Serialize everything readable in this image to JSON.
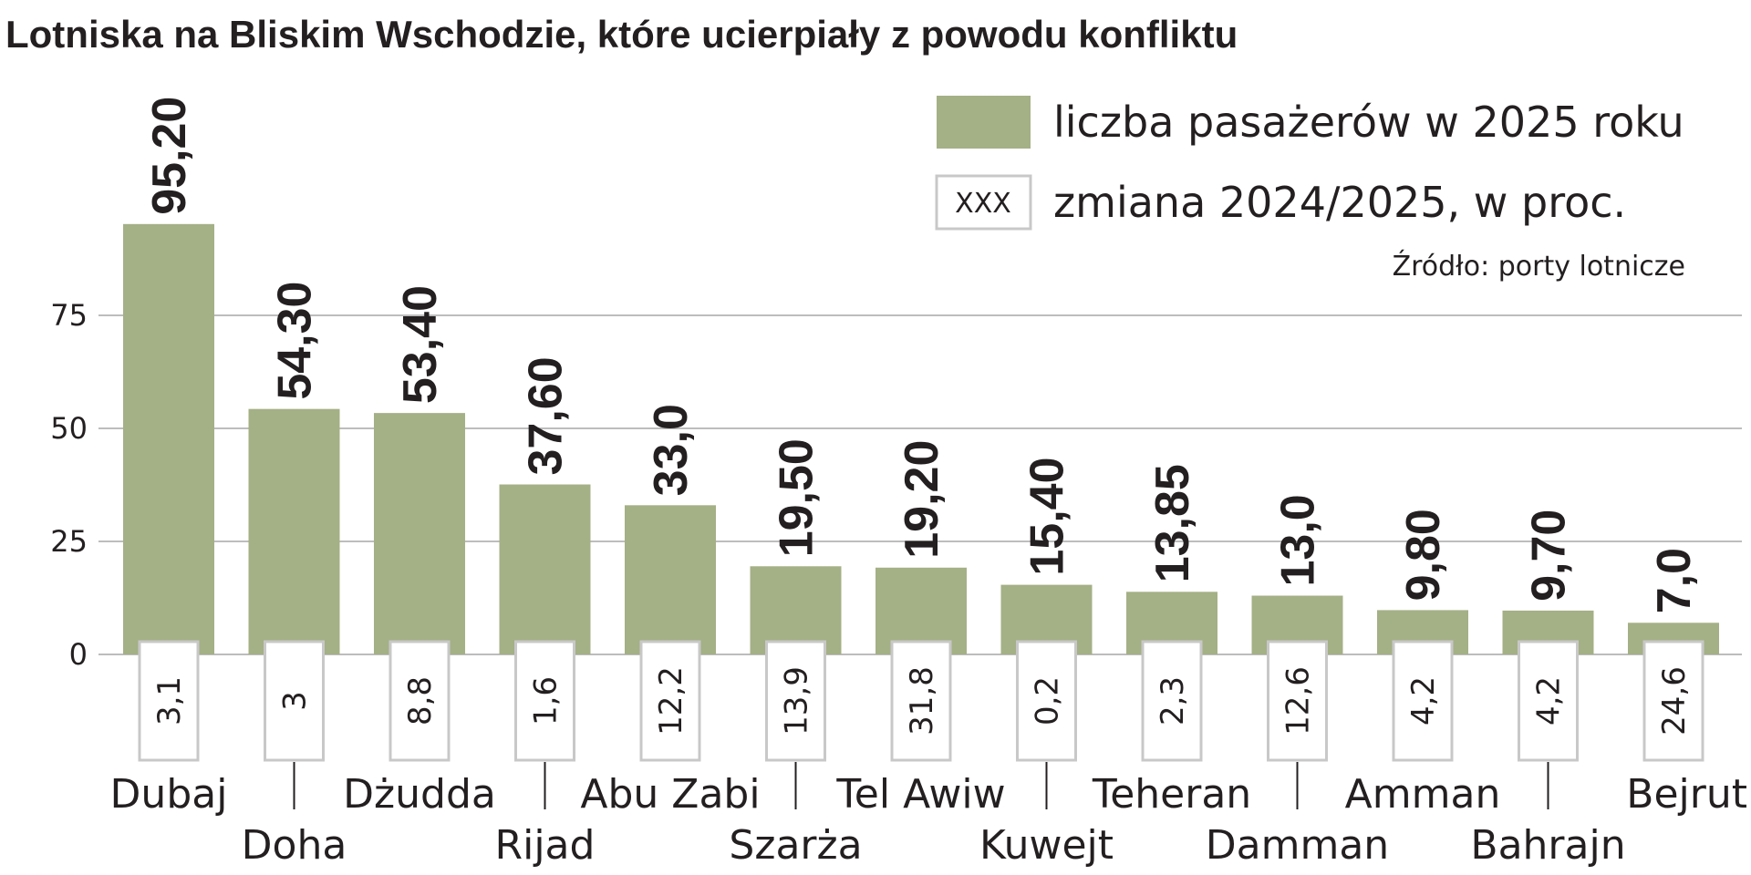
{
  "chart_data": {
    "type": "bar",
    "title": "Lotniska na Bliskim Wschodzie, które ucierpiały z powodu konfliktu",
    "source": "Źródło: porty lotnicze",
    "legend": {
      "placement": "top-right",
      "bar_label": "liczba pasażerów w 2025 roku",
      "change_label": "zmiana 2024/2025, w proc.",
      "change_sample": "XXX"
    },
    "categories": [
      "Dubaj",
      "Doha",
      "Dżudda",
      "Rijad",
      "Abu Zabi",
      "Szarża",
      "Tel Awiw",
      "Kuwejt",
      "Teheran",
      "Damman",
      "Amman",
      "Bahrajn",
      "Bejrut"
    ],
    "values": [
      95.2,
      54.3,
      53.4,
      37.6,
      33.0,
      19.5,
      19.2,
      15.4,
      13.85,
      13.0,
      9.8,
      9.7,
      7.0
    ],
    "value_labels": [
      "95,20",
      "54,30",
      "53,40",
      "37,60",
      "33,0",
      "19,50",
      "19,20",
      "15,40",
      "13,85",
      "13,0",
      "9,80",
      "9,70",
      "7,0"
    ],
    "changes": [
      "3,1",
      "3",
      "8,8",
      "1,6",
      "12,2",
      "13,9",
      "31,8",
      "0,2",
      "2,3",
      "12,6",
      "4,2",
      "4,2",
      "24,6"
    ],
    "y_ticks": [
      0,
      25,
      50,
      75
    ],
    "ylim": [
      0,
      100
    ],
    "grid": true,
    "colors": {
      "bar": "#a4b086",
      "grid": "#bdbdbd",
      "box_border": "#c8c8c8",
      "text": "#231f20"
    }
  }
}
